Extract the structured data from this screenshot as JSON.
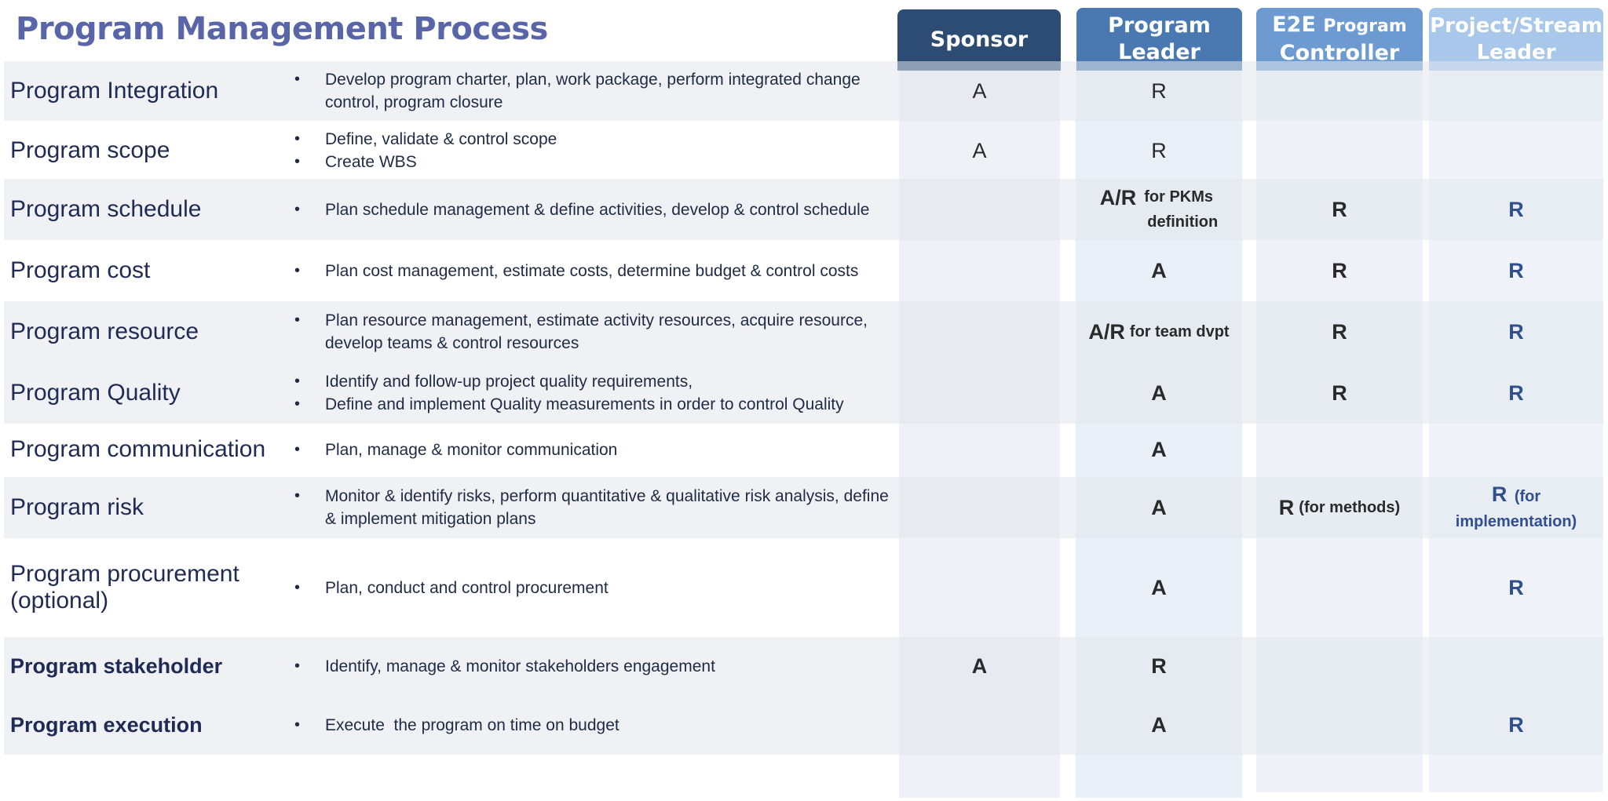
{
  "title": "Program Management Process",
  "columns": {
    "sponsor": "Sponsor",
    "program_leader_1": "Program",
    "program_leader_2": "Leader",
    "e2e_prefix": "E2E",
    "e2e_program": "Program",
    "e2e_controller": "Controller",
    "stream_1": "Project/Stream",
    "stream_2": "Leader"
  },
  "rows": [
    {
      "process": "Program Integration",
      "bullets": [
        "Develop program charter, plan, work package, perform integrated change control, program closure"
      ],
      "sponsor": "A",
      "leader": "R",
      "controller": "",
      "stream": ""
    },
    {
      "process": "Program scope",
      "bullets": [
        "Define, validate & control scope",
        "Create WBS"
      ],
      "sponsor": "A",
      "leader": "R",
      "controller": "",
      "stream": ""
    },
    {
      "process": "Program schedule",
      "bullets": [
        "Plan schedule management & define activities, develop & control schedule"
      ],
      "sponsor": "",
      "leader": "A/R",
      "leader_note_1": "for PKMs",
      "leader_note_2": "definition",
      "controller": "R",
      "stream": "R"
    },
    {
      "process": "Program cost",
      "bullets": [
        "Plan cost management, estimate costs, determine budget & control costs"
      ],
      "sponsor": "",
      "leader": "A",
      "controller": "R",
      "stream": "R"
    },
    {
      "process": "Program resource",
      "bullets": [
        "Plan resource management, estimate activity resources, acquire resource, develop teams & control resources"
      ],
      "sponsor": "",
      "leader": "A/R",
      "leader_note": "for team dvpt",
      "controller": "R",
      "stream": "R"
    },
    {
      "process": "Program Quality",
      "bullets": [
        "Identify and follow-up project quality requirements,",
        "Define and implement Quality measurements in order to control Quality"
      ],
      "sponsor": "",
      "leader": "A",
      "controller": "R",
      "stream": "R"
    },
    {
      "process": "Program communication",
      "bullets": [
        "Plan, manage & monitor communication"
      ],
      "sponsor": "",
      "leader": "A",
      "controller": "",
      "stream": ""
    },
    {
      "process": "Program risk",
      "bullets": [
        "Monitor & identify risks, perform quantitative & qualitative risk analysis, define & implement mitigation plans"
      ],
      "sponsor": "",
      "leader": "A",
      "controller": "R",
      "controller_note": "(for methods)",
      "stream": "R",
      "stream_note_1": "(for",
      "stream_note_2": "implementation)"
    },
    {
      "process_1": "Program procurement",
      "process_2": "(optional)",
      "bullets": [
        "Plan, conduct and control procurement"
      ],
      "sponsor": "",
      "leader": "A",
      "controller": "",
      "stream": "R"
    },
    {
      "process": "Program stakeholder",
      "bullets": [
        "Identify, manage & monitor stakeholders engagement"
      ],
      "sponsor": "A",
      "leader": "R",
      "controller": "",
      "stream": ""
    },
    {
      "process": "Program execution",
      "bullets": [
        "Execute  the program on time on budget"
      ],
      "sponsor": "",
      "leader": "A",
      "controller": "",
      "stream": "R"
    }
  ]
}
